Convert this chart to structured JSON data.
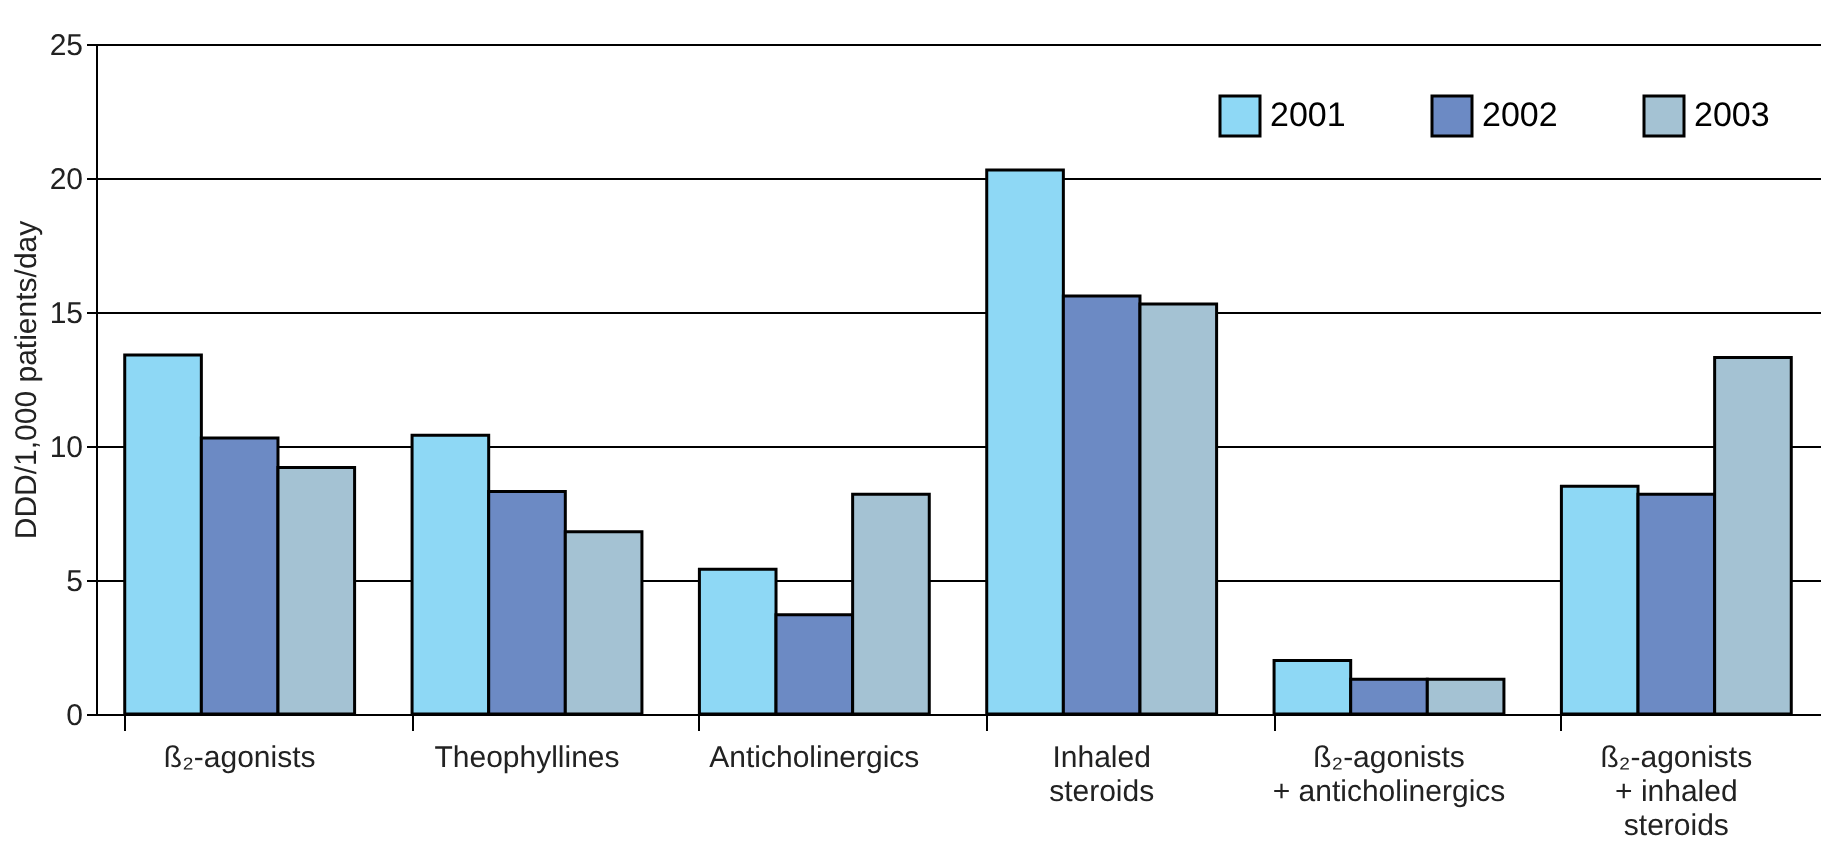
{
  "chart_data": {
    "type": "bar",
    "ylabel": "DDD/1,000 patients/day",
    "categories": [
      "ß₂-agonists",
      "Theophyllines",
      "Anticholinergics",
      "Inhaled\nsteroids",
      "ß₂-agonists\n+ anticholinergics",
      "ß₂-agonists\n+ inhaled\nsteroids"
    ],
    "series": [
      {
        "name": "2001",
        "color": "#8ed8f5",
        "values": [
          13.4,
          10.4,
          5.4,
          20.3,
          2.0,
          8.5
        ]
      },
      {
        "name": "2002",
        "color": "#6c8ac4",
        "values": [
          10.3,
          8.3,
          3.7,
          15.6,
          1.3,
          8.2
        ]
      },
      {
        "name": "2003",
        "color": "#a4c2d3",
        "values": [
          9.2,
          6.8,
          8.2,
          15.3,
          1.3,
          13.3
        ]
      }
    ],
    "ylim": [
      0,
      25
    ],
    "yticks": [
      0,
      5,
      10,
      15,
      20,
      25
    ],
    "grid": "y",
    "legend": "top right"
  }
}
